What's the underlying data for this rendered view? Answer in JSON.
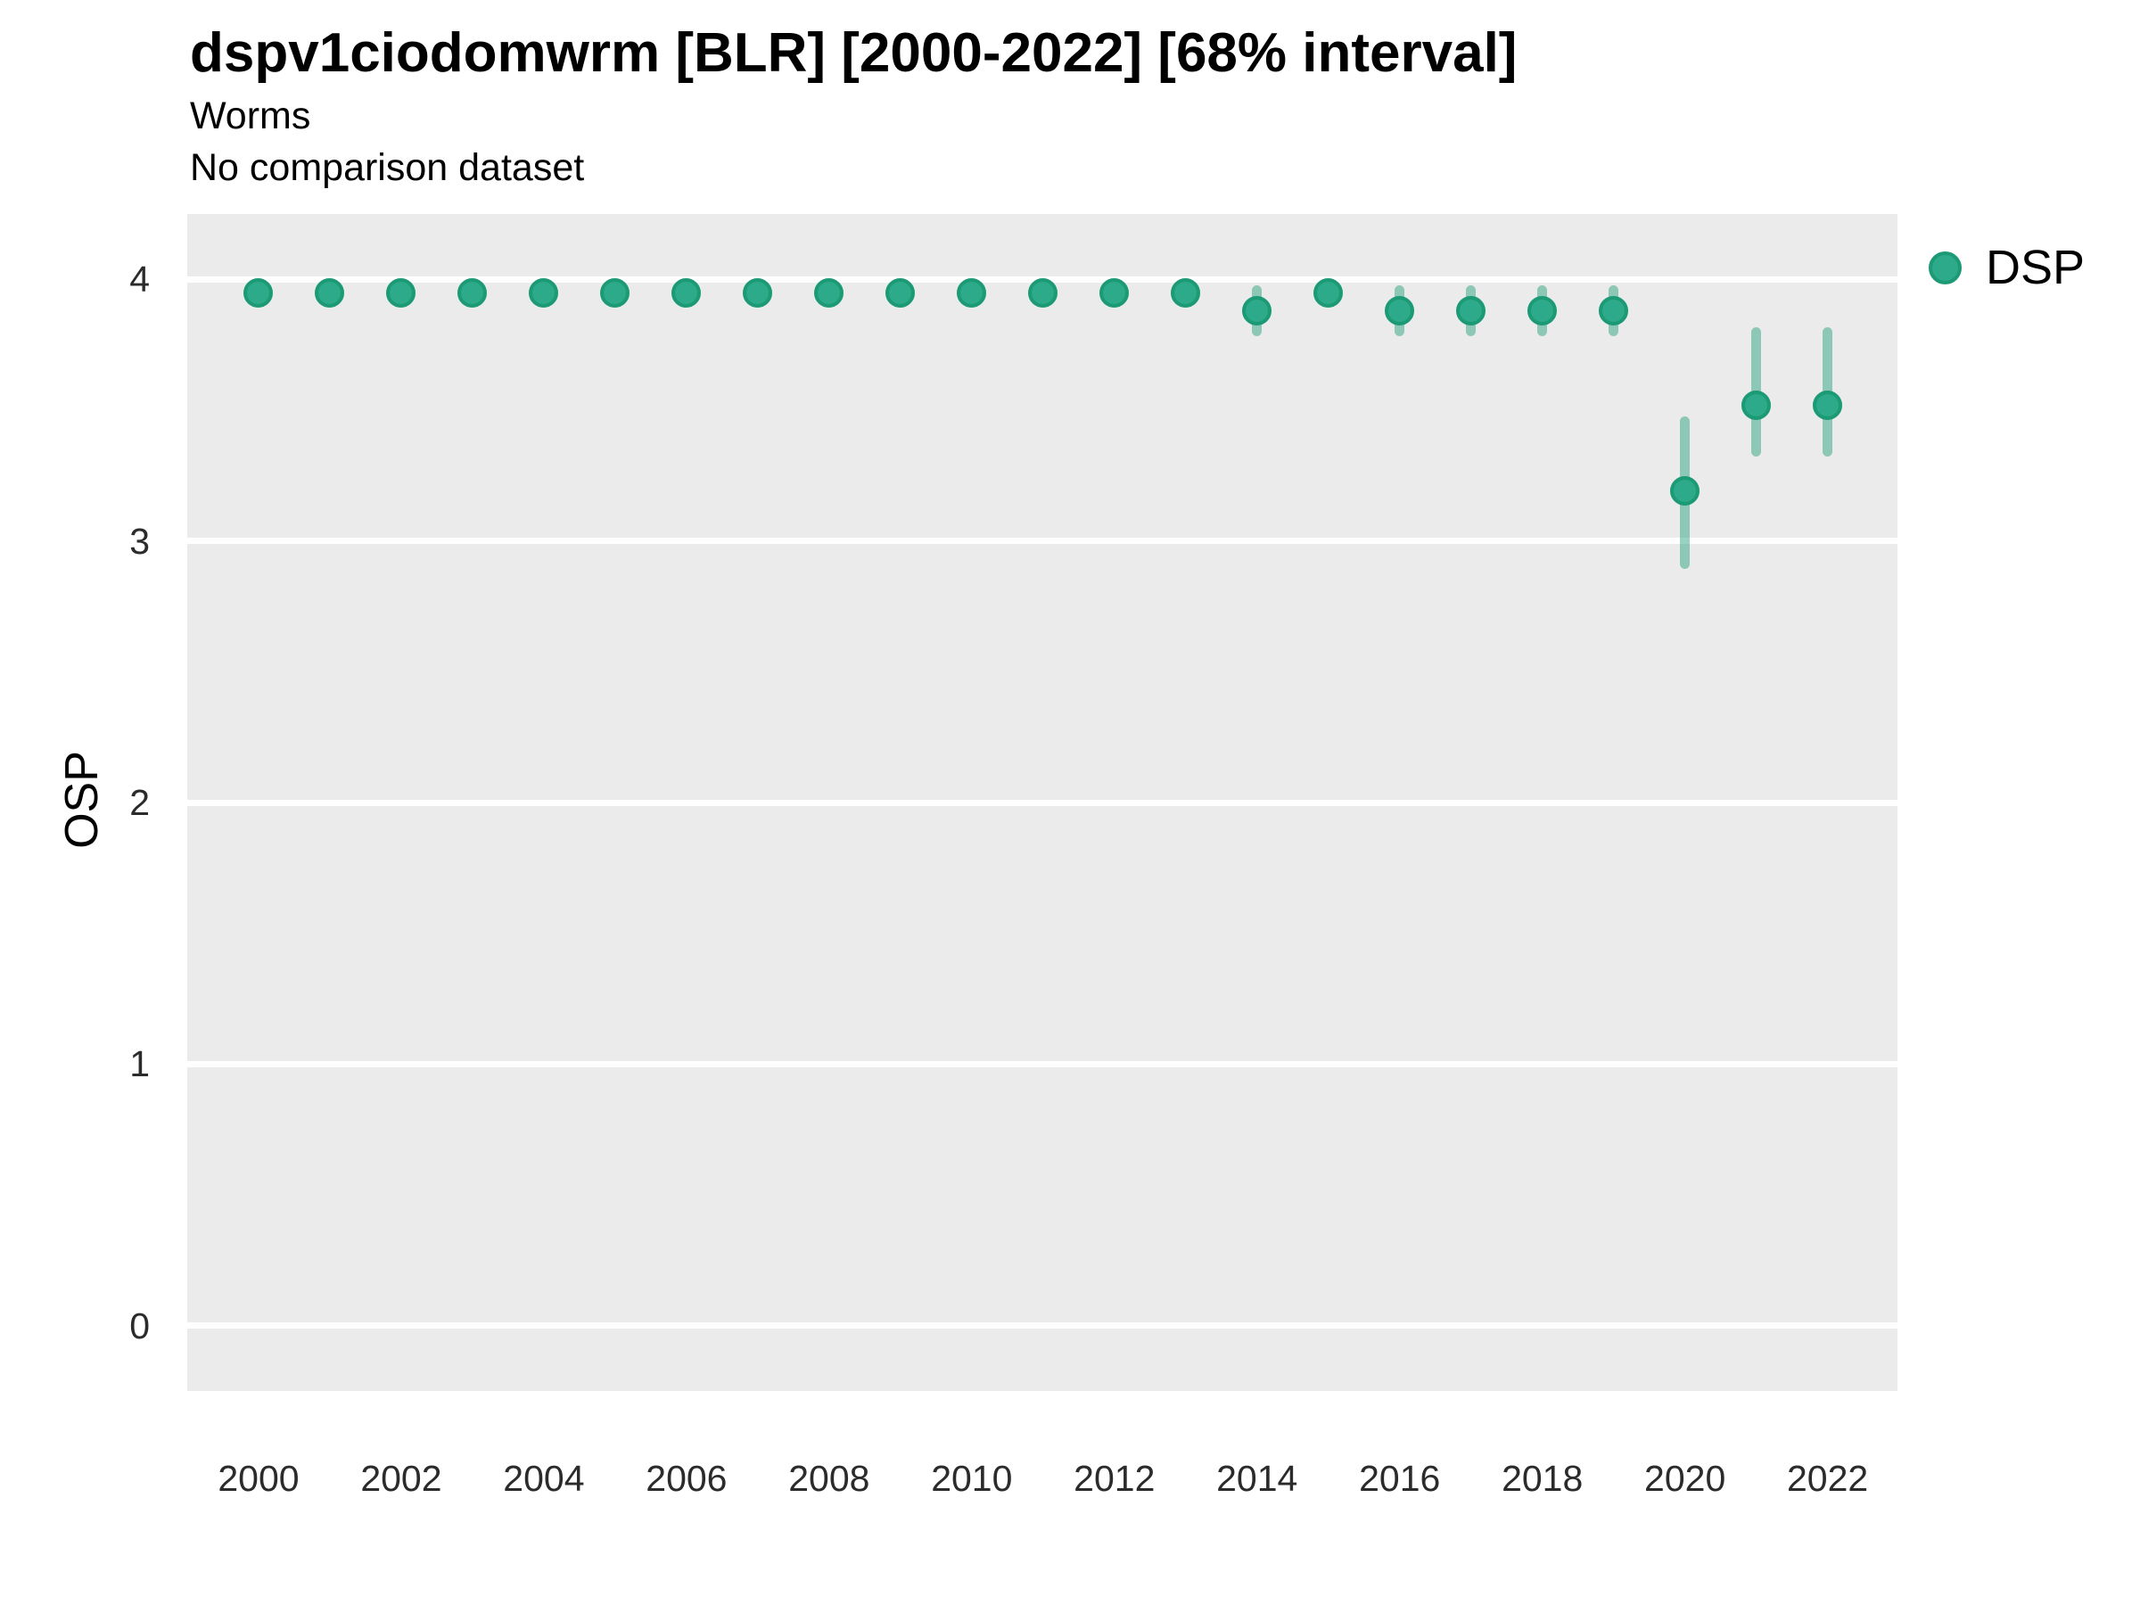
{
  "header": {
    "title": "dspv1ciodomwrm [BLR] [2000-2022] [68% interval]",
    "subtitle1": "Worms",
    "subtitle2": "No comparison dataset"
  },
  "legend": {
    "label": "DSP"
  },
  "colors": {
    "panel_bg": "#EBEBEB",
    "gridline": "#FFFFFF",
    "point_fill": "#2CAA89",
    "point_border": "#1C9A75",
    "interval_line": "rgba(27,158,119,0.45)",
    "title_text": "#000000",
    "tick_text": "#2b2b2b"
  },
  "chart_data": {
    "type": "scatter",
    "title": "dspv1ciodomwrm [BLR] [2000-2022] [68% interval]",
    "subtitle": "Worms",
    "caption": "No comparison dataset",
    "xlabel": "",
    "ylabel": "OSP",
    "interval_label": "68% interval",
    "legend_position": "right",
    "grid": "major-horizontal-only",
    "xlim": [
      1999.0,
      2022.98
    ],
    "ylim": [
      -0.25,
      4.25
    ],
    "x_ticks": [
      2000,
      2002,
      2004,
      2006,
      2008,
      2010,
      2012,
      2014,
      2016,
      2018,
      2020,
      2022
    ],
    "y_ticks": [
      4,
      3,
      2,
      1,
      0
    ],
    "series": [
      {
        "name": "DSP",
        "points": [
          {
            "year": 2000,
            "value": 3.95,
            "lo": null,
            "hi": null
          },
          {
            "year": 2001,
            "value": 3.95,
            "lo": null,
            "hi": null
          },
          {
            "year": 2002,
            "value": 3.95,
            "lo": null,
            "hi": null
          },
          {
            "year": 2003,
            "value": 3.95,
            "lo": null,
            "hi": null
          },
          {
            "year": 2004,
            "value": 3.95,
            "lo": null,
            "hi": null
          },
          {
            "year": 2005,
            "value": 3.95,
            "lo": null,
            "hi": null
          },
          {
            "year": 2006,
            "value": 3.95,
            "lo": null,
            "hi": null
          },
          {
            "year": 2007,
            "value": 3.95,
            "lo": null,
            "hi": null
          },
          {
            "year": 2008,
            "value": 3.95,
            "lo": null,
            "hi": null
          },
          {
            "year": 2009,
            "value": 3.95,
            "lo": null,
            "hi": null
          },
          {
            "year": 2010,
            "value": 3.95,
            "lo": null,
            "hi": null
          },
          {
            "year": 2011,
            "value": 3.95,
            "lo": null,
            "hi": null
          },
          {
            "year": 2012,
            "value": 3.95,
            "lo": null,
            "hi": null
          },
          {
            "year": 2013,
            "value": 3.95,
            "lo": null,
            "hi": null
          },
          {
            "year": 2014,
            "value": 3.88,
            "lo": 3.8,
            "hi": 3.96
          },
          {
            "year": 2015,
            "value": 3.95,
            "lo": null,
            "hi": null
          },
          {
            "year": 2016,
            "value": 3.88,
            "lo": 3.8,
            "hi": 3.96
          },
          {
            "year": 2017,
            "value": 3.88,
            "lo": 3.8,
            "hi": 3.96
          },
          {
            "year": 2018,
            "value": 3.88,
            "lo": 3.8,
            "hi": 3.96
          },
          {
            "year": 2019,
            "value": 3.88,
            "lo": 3.8,
            "hi": 3.96
          },
          {
            "year": 2020,
            "value": 3.19,
            "lo": 2.91,
            "hi": 3.46
          },
          {
            "year": 2021,
            "value": 3.52,
            "lo": 3.34,
            "hi": 3.8
          },
          {
            "year": 2022,
            "value": 3.52,
            "lo": 3.34,
            "hi": 3.8
          }
        ]
      }
    ]
  }
}
